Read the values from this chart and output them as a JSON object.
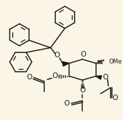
{
  "bg_color": "#fbf5e6",
  "line_color": "#1a1a1a",
  "lw": 1.1,
  "figsize": [
    1.78,
    1.74
  ],
  "dpi": 100,
  "xlim": [
    0,
    178
  ],
  "ylim": [
    0,
    174
  ],
  "benzene_r": 18,
  "font_size_atom": 7.5,
  "font_size_ome": 6.5
}
